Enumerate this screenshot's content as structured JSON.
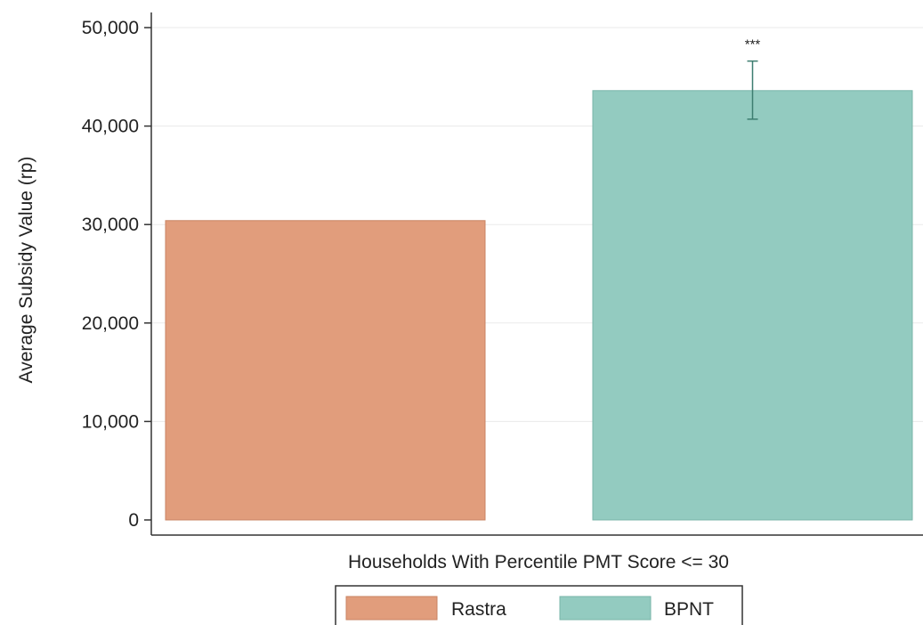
{
  "chart_data": {
    "type": "bar",
    "title": "",
    "xlabel": "Households With Percentile PMT Score <= 30",
    "ylabel": "Average Subsidy Value (rp)",
    "ylim": [
      0,
      50000
    ],
    "yticks": [
      0,
      10000,
      20000,
      30000,
      40000,
      50000
    ],
    "ytick_labels": [
      "0",
      "10,000",
      "20,000",
      "30,000",
      "40,000",
      "50,000"
    ],
    "grid": true,
    "legend_position": "bottom",
    "series": [
      {
        "name": "Rastra",
        "value": 30400,
        "color": "#e19d7c"
      },
      {
        "name": "BPNT",
        "value": 43600,
        "color": "#93cbc0",
        "error_bar": [
          40700,
          46600
        ],
        "annotation": "***"
      }
    ]
  },
  "colors": {
    "axis": "#333333",
    "grid": "#eaeaea",
    "bar_edge_rastra": "#c98463",
    "bar_edge_bpnt": "#78b5a9",
    "error_bar": "#3d7d70"
  }
}
